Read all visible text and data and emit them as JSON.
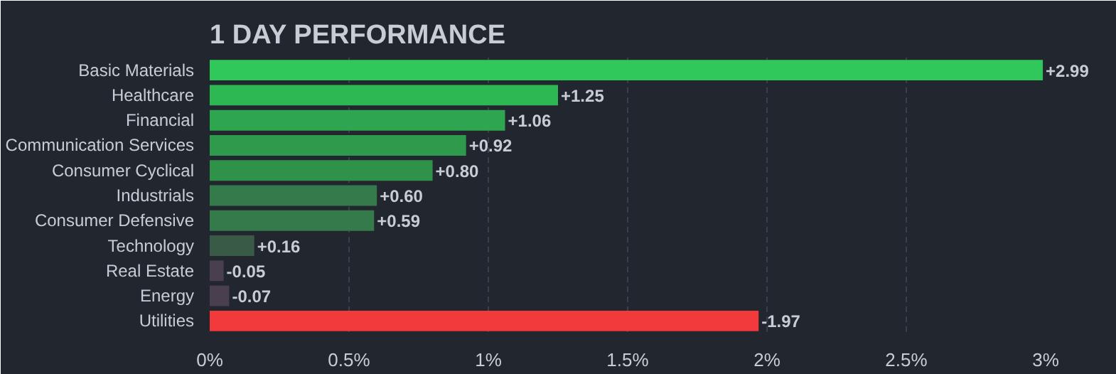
{
  "chart_data": {
    "type": "bar",
    "orientation": "horizontal",
    "title": "1 DAY PERFORMANCE",
    "categories": [
      "Basic Materials",
      "Healthcare",
      "Financial",
      "Communication Services",
      "Consumer Cyclical",
      "Industrials",
      "Consumer Defensive",
      "Technology",
      "Real Estate",
      "Energy",
      "Utilities"
    ],
    "values": [
      2.99,
      1.25,
      1.06,
      0.92,
      0.8,
      0.6,
      0.59,
      0.16,
      -0.05,
      -0.07,
      -1.97
    ],
    "base": [
      0,
      0,
      0,
      0,
      0,
      0,
      0,
      0,
      0.05,
      0.07,
      1.97
    ],
    "value_labels": [
      "+2.99",
      "+1.25",
      "+1.06",
      "+0.92",
      "+0.80",
      "+0.60",
      "+0.59",
      "+0.16",
      "-0.05",
      "-0.07",
      "-1.97"
    ],
    "colors": [
      "#30c85a",
      "#2eb853",
      "#2ea64f",
      "#2f9a4c",
      "#2f9249",
      "#347a4a",
      "#347a4a",
      "#3a5a48",
      "#4a3f4f",
      "#4a3f4f",
      "#f23a3c"
    ],
    "xlim": [
      0,
      3
    ],
    "xticks": [
      {
        "value": 0,
        "label": "0%"
      },
      {
        "value": 0.5,
        "label": "0.5%"
      },
      {
        "value": 1,
        "label": "1%"
      },
      {
        "value": 1.5,
        "label": "1.5%"
      },
      {
        "value": 2,
        "label": "2%"
      },
      {
        "value": 2.5,
        "label": "2.5%"
      },
      {
        "value": 3,
        "label": "3%"
      }
    ],
    "grid": "x"
  }
}
